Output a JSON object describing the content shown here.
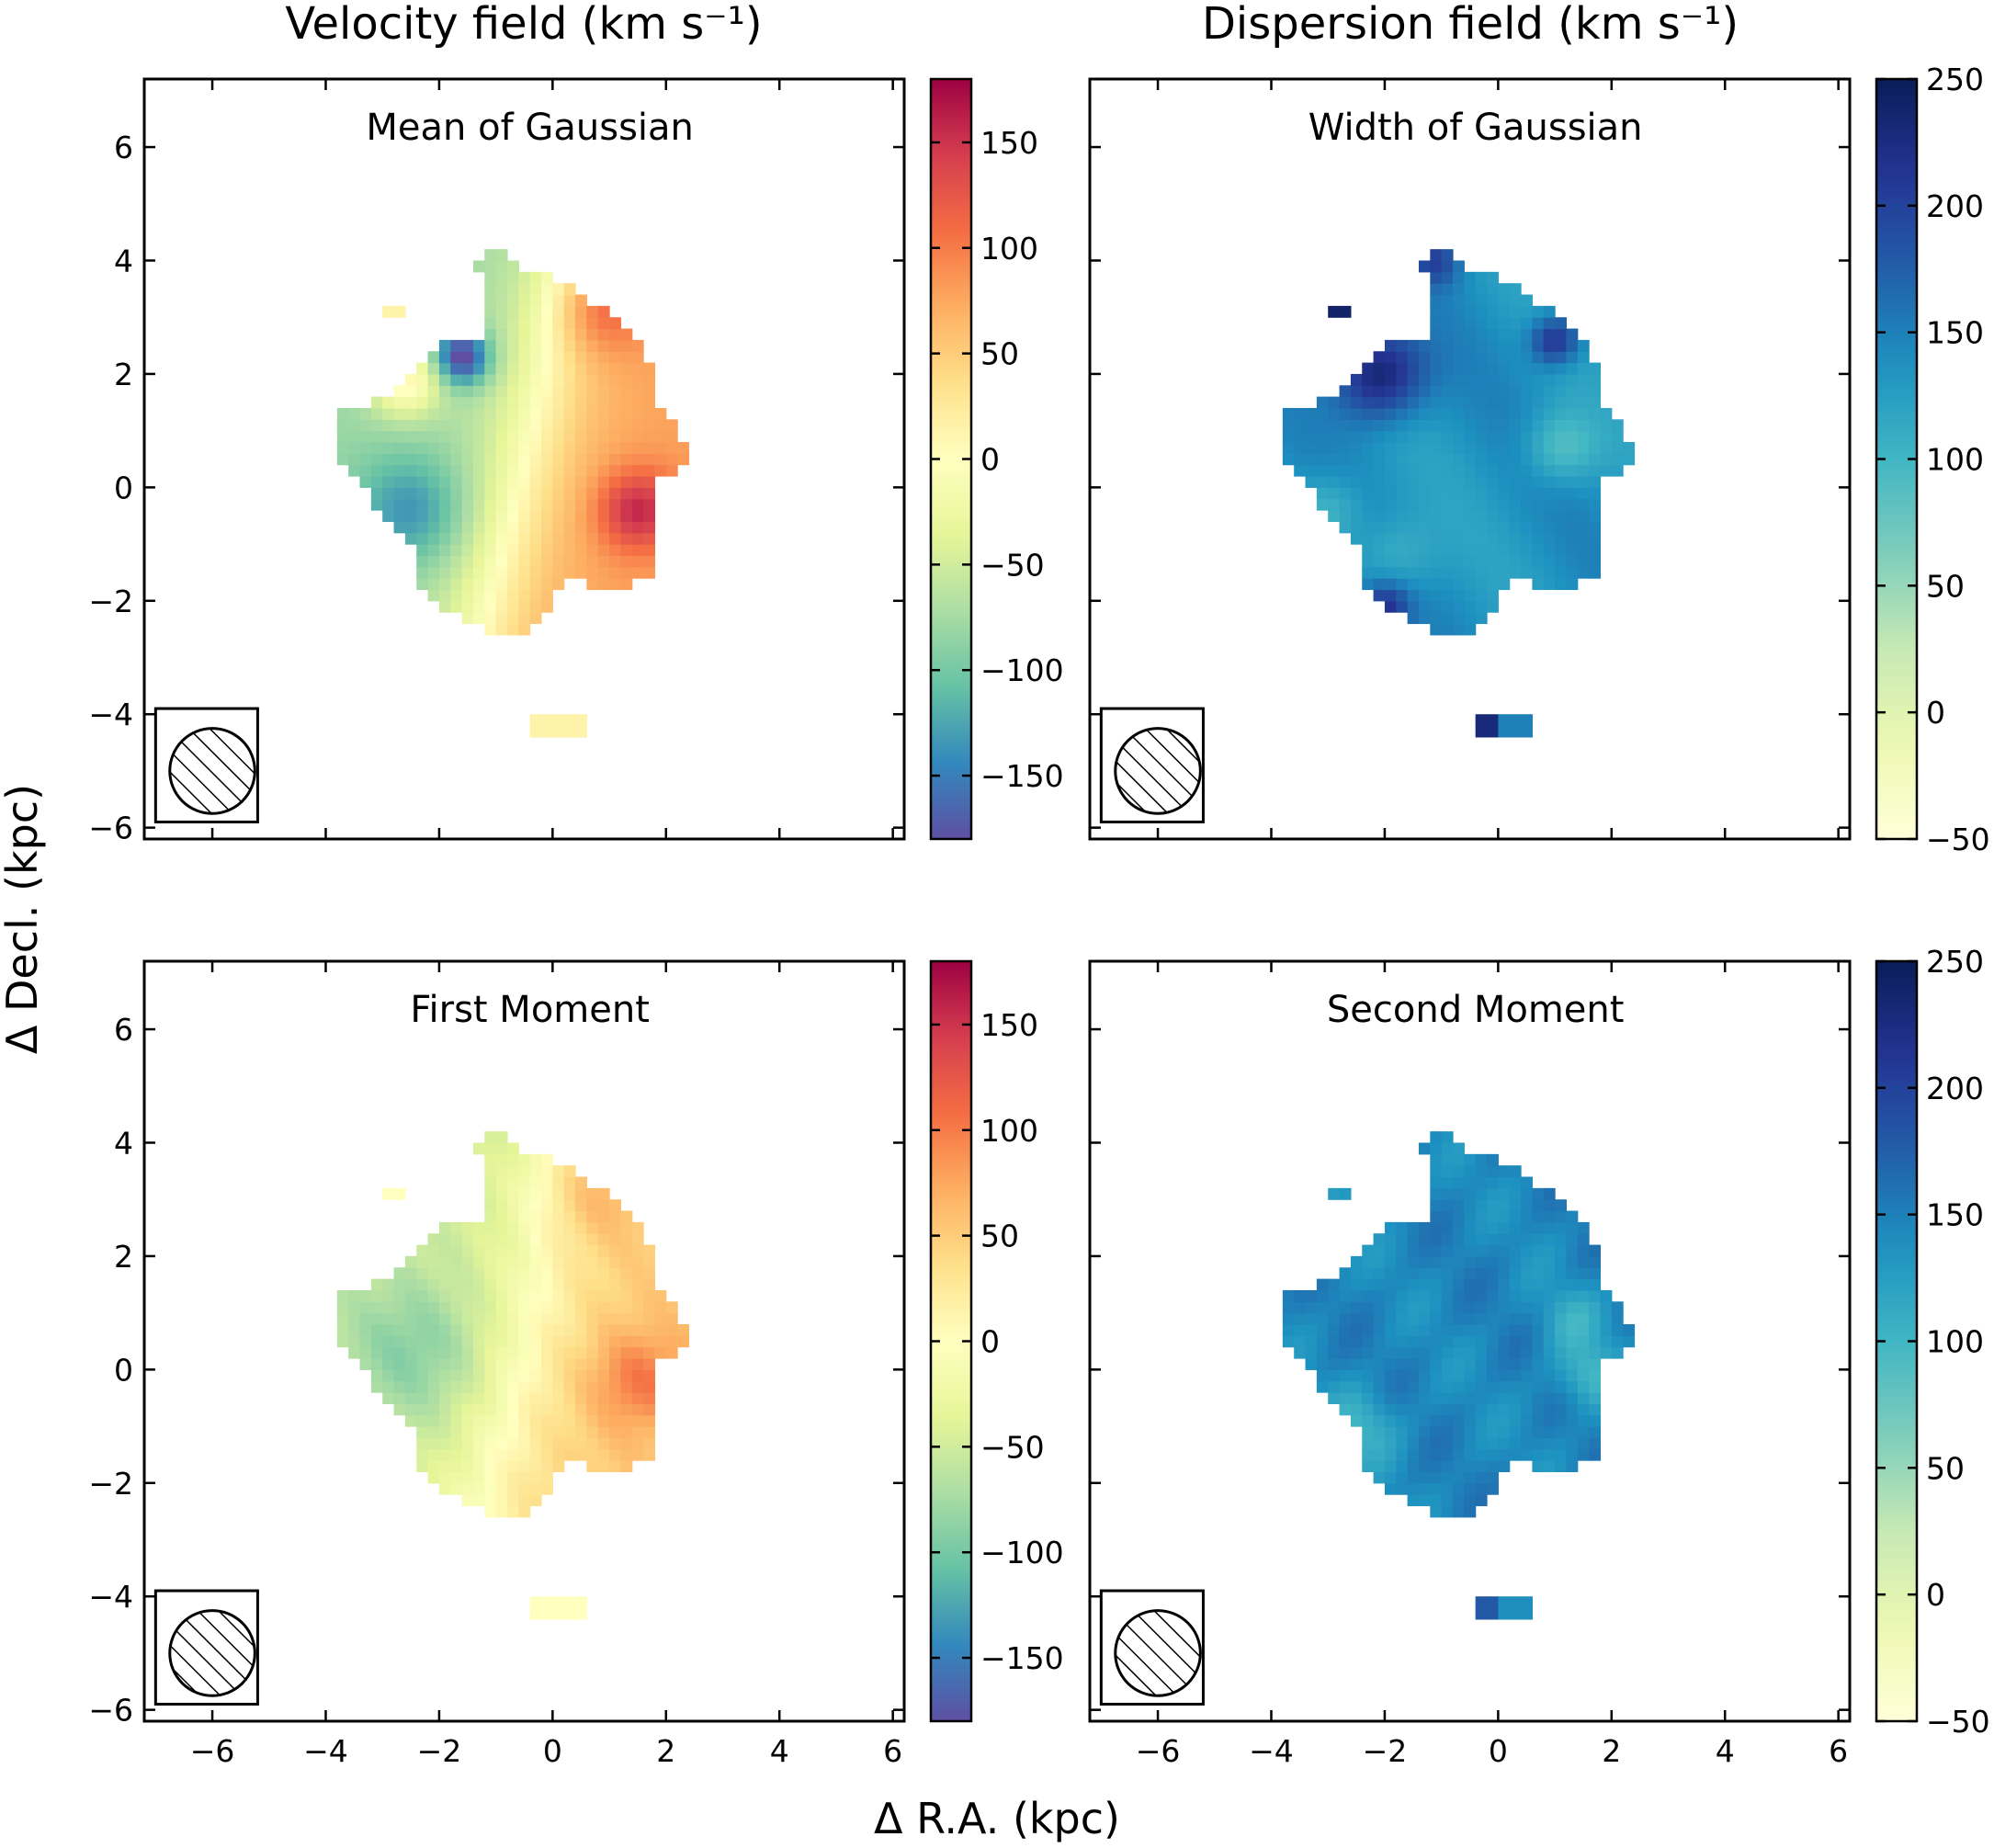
{
  "chart_data": {
    "type": "heatmap",
    "column_titles": [
      "Velocity field (km s⁻¹)",
      "Dispersion field (km s⁻¹)"
    ],
    "xlabel": "Δ R.A. (kpc)",
    "ylabel": "Δ Decl. (kpc)",
    "xlim": [
      -7.2,
      6.2
    ],
    "ylim": [
      -6.2,
      7.2
    ],
    "x_ticks": [
      -6,
      -4,
      -2,
      0,
      2,
      4,
      6
    ],
    "y_ticks": [
      -6,
      -4,
      -2,
      0,
      2,
      4,
      6
    ],
    "beam": {
      "center_kpc": [
        -6.0,
        -5.0
      ],
      "radius_kpc": 0.75,
      "hatched": true
    },
    "panels": [
      {
        "id": "mean-of-gaussian",
        "label": "Mean of Gaussian",
        "quantity": "velocity",
        "colormap": "Spectral_r",
        "vmin": -180,
        "vmax": 180,
        "colorbar_ticks": [
          150,
          100,
          50,
          0,
          -50,
          -100,
          -150
        ],
        "features": "rotating disk: blueshifted (-50 to -170) toward east (negative R.A.), redshifted (+80 to +170) toward west; yellow kinematic minor axis near R.A. ~ -0.5 kpc; compact clump near Decl. -4.2 kpc at ~0"
      },
      {
        "id": "width-of-gaussian",
        "label": "Width of Gaussian",
        "quantity": "dispersion",
        "colormap": "YlGnBu",
        "vmin": -50,
        "vmax": 250,
        "colorbar_ticks": [
          250,
          200,
          150,
          100,
          50,
          0,
          -50
        ],
        "features": "mostly 120-160 km/s; peaks >230 km/s in north-east and edge spots; lower (~80) patches near west edge"
      },
      {
        "id": "first-moment",
        "label": "First Moment",
        "quantity": "velocity",
        "colormap": "Spectral_r",
        "vmin": -180,
        "vmax": 180,
        "colorbar_ticks": [
          150,
          100,
          50,
          0,
          -50,
          -100,
          -150
        ],
        "features": "smoother, lower amplitude version of the Gaussian mean map (about -90 to +120)"
      },
      {
        "id": "second-moment",
        "label": "Second Moment",
        "quantity": "dispersion",
        "colormap": "YlGnBu",
        "vmin": -50,
        "vmax": 250,
        "colorbar_ticks": [
          250,
          200,
          150,
          100,
          50,
          0,
          -50
        ],
        "features": "fairly uniform 120-160 km/s with lighter (~80) patches at edges"
      }
    ]
  }
}
